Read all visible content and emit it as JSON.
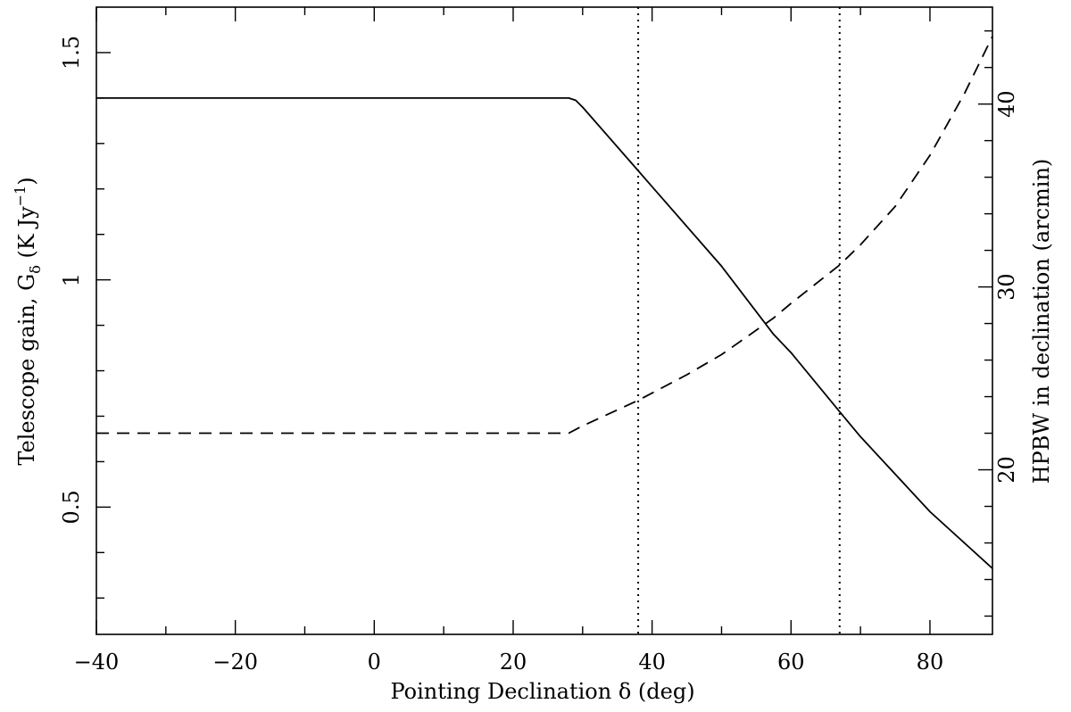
{
  "chart_data": {
    "type": "line",
    "xlabel": "Pointing Declination δ (deg)",
    "ylabel_left_parts": {
      "pre": "Telescope gain, G",
      "sub": "δ",
      "mid": " (K Jy",
      "sup": "−1",
      "post": ")"
    },
    "ylabel_right": "HPBW in declination (arcmin)",
    "xlim": [
      -40,
      89
    ],
    "ylim_left": [
      0.22,
      1.6
    ],
    "ylim_right": [
      11.0,
      45.3
    ],
    "x_ticks": [
      -40,
      -20,
      0,
      20,
      40,
      60,
      80
    ],
    "x_tick_labels": [
      "−40",
      "−20",
      "0",
      "20",
      "40",
      "60",
      "80"
    ],
    "y_left_ticks": [
      0.5,
      1,
      1.5
    ],
    "y_left_tick_labels": [
      "0.5",
      "1",
      "1.5"
    ],
    "y_right_ticks": [
      20,
      30,
      40
    ],
    "y_right_tick_labels": [
      "20",
      "30",
      "40"
    ],
    "grid": false,
    "series": [
      {
        "axis": "left",
        "style": "solid",
        "x": [
          -40,
          28,
          29,
          30,
          38,
          40,
          50,
          57.5,
          60,
          67,
          70,
          80,
          89
        ],
        "y": [
          1.4,
          1.4,
          1.395,
          1.38,
          1.24,
          1.205,
          1.03,
          0.88,
          0.84,
          0.71,
          0.655,
          0.49,
          0.365
        ]
      },
      {
        "axis": "right",
        "style": "dashed",
        "x": [
          -40,
          28,
          30,
          38,
          45,
          50,
          57.5,
          60,
          67,
          70,
          75,
          80,
          85,
          89
        ],
        "y": [
          22.0,
          22.0,
          22.4,
          23.8,
          25.2,
          26.3,
          28.3,
          29.1,
          31.2,
          32.3,
          34.4,
          37.2,
          40.6,
          43.7
        ]
      }
    ],
    "vertical_lines": [
      38,
      67
    ]
  }
}
